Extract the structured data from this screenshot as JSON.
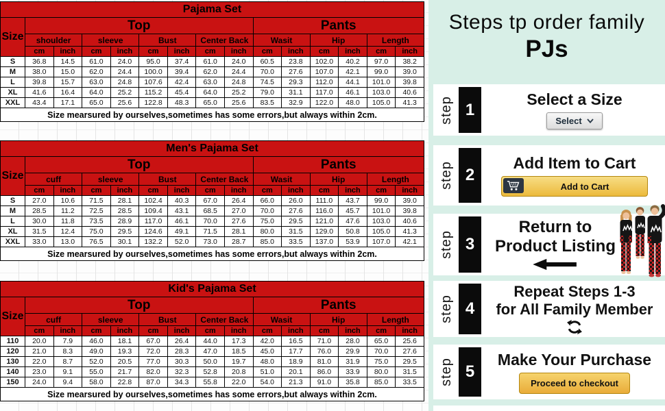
{
  "colors": {
    "table_red": "#c91212",
    "mint_background": "#d8efe7",
    "step_box_black": "#0b0b0b",
    "gold_button": "#ecba3c"
  },
  "left": {
    "tables": [
      {
        "title": "Pajama Set",
        "size_label": "Size",
        "top_label": "Top",
        "pants_label": "Pants",
        "unit_cm": "cm",
        "unit_inch": "inch",
        "groups": [
          "shoulder",
          "sleeve",
          "Bust",
          "Center Back",
          "Wasit",
          "Hip",
          "Length"
        ],
        "rows": [
          {
            "size": "S",
            "values": [
              "36.8",
              "14.5",
              "61.0",
              "24.0",
              "95.0",
              "37.4",
              "61.0",
              "24.0",
              "60.5",
              "23.8",
              "102.0",
              "40.2",
              "97.0",
              "38.2"
            ]
          },
          {
            "size": "M",
            "values": [
              "38.0",
              "15.0",
              "62.0",
              "24.4",
              "100.0",
              "39.4",
              "62.0",
              "24.4",
              "70.0",
              "27.6",
              "107.0",
              "42.1",
              "99.0",
              "39.0"
            ]
          },
          {
            "size": "L",
            "values": [
              "39.8",
              "15.7",
              "63.0",
              "24.8",
              "107.6",
              "42.4",
              "63.0",
              "24.8",
              "74.5",
              "29.3",
              "112.0",
              "44.1",
              "101.0",
              "39.8"
            ]
          },
          {
            "size": "XL",
            "values": [
              "41.6",
              "16.4",
              "64.0",
              "25.2",
              "115.2",
              "45.4",
              "64.0",
              "25.2",
              "79.0",
              "31.1",
              "117.0",
              "46.1",
              "103.0",
              "40.6"
            ]
          },
          {
            "size": "XXL",
            "values": [
              "43.4",
              "17.1",
              "65.0",
              "25.6",
              "122.8",
              "48.3",
              "65.0",
              "25.6",
              "83.5",
              "32.9",
              "122.0",
              "48.0",
              "105.0",
              "41.3"
            ]
          }
        ],
        "footer": "Size mearsured by ourselves,sometimes has some errors,but always within 2cm."
      },
      {
        "title": "Men's Pajama Set",
        "size_label": "Size",
        "top_label": "Top",
        "pants_label": "Pants",
        "unit_cm": "cm",
        "unit_inch": "inch",
        "groups": [
          "cuff",
          "sleeve",
          "Bust",
          "Center Back",
          "Wasit",
          "Hip",
          "Length"
        ],
        "rows": [
          {
            "size": "S",
            "values": [
              "27.0",
              "10.6",
              "71.5",
              "28.1",
              "102.4",
              "40.3",
              "67.0",
              "26.4",
              "66.0",
              "26.0",
              "111.0",
              "43.7",
              "99.0",
              "39.0"
            ]
          },
          {
            "size": "M",
            "values": [
              "28.5",
              "11.2",
              "72.5",
              "28.5",
              "109.4",
              "43.1",
              "68.5",
              "27.0",
              "70.0",
              "27.6",
              "116.0",
              "45.7",
              "101.0",
              "39.8"
            ]
          },
          {
            "size": "L",
            "values": [
              "30.0",
              "11.8",
              "73.5",
              "28.9",
              "117.0",
              "46.1",
              "70.0",
              "27.6",
              "75.0",
              "29.5",
              "121.0",
              "47.6",
              "103.0",
              "40.6"
            ]
          },
          {
            "size": "XL",
            "values": [
              "31.5",
              "12.4",
              "75.0",
              "29.5",
              "124.6",
              "49.1",
              "71.5",
              "28.1",
              "80.0",
              "31.5",
              "129.0",
              "50.8",
              "105.0",
              "41.3"
            ]
          },
          {
            "size": "XXL",
            "values": [
              "33.0",
              "13.0",
              "76.5",
              "30.1",
              "132.2",
              "52.0",
              "73.0",
              "28.7",
              "85.0",
              "33.5",
              "137.0",
              "53.9",
              "107.0",
              "42.1"
            ]
          }
        ],
        "footer": "Size mearsured by ourselves,sometimes has some errors,but always within 2cm."
      },
      {
        "title": "Kid's Pajama Set",
        "size_label": "Size",
        "top_label": "Top",
        "pants_label": "Pants",
        "unit_cm": "cm",
        "unit_inch": "inch",
        "groups": [
          "cuff",
          "sleeve",
          "Bust",
          "Center Back",
          "Wasit",
          "Hip",
          "Length"
        ],
        "rows": [
          {
            "size": "110",
            "values": [
              "20.0",
              "7.9",
              "46.0",
              "18.1",
              "67.0",
              "26.4",
              "44.0",
              "17.3",
              "42.0",
              "16.5",
              "71.0",
              "28.0",
              "65.0",
              "25.6"
            ]
          },
          {
            "size": "120",
            "values": [
              "21.0",
              "8.3",
              "49.0",
              "19.3",
              "72.0",
              "28.3",
              "47.0",
              "18.5",
              "45.0",
              "17.7",
              "76.0",
              "29.9",
              "70.0",
              "27.6"
            ]
          },
          {
            "size": "130",
            "values": [
              "22.0",
              "8.7",
              "52.0",
              "20.5",
              "77.0",
              "30.3",
              "50.0",
              "19.7",
              "48.0",
              "18.9",
              "81.0",
              "31.9",
              "75.0",
              "29.5"
            ]
          },
          {
            "size": "140",
            "values": [
              "23.0",
              "9.1",
              "55.0",
              "21.7",
              "82.0",
              "32.3",
              "52.8",
              "20.8",
              "51.0",
              "20.1",
              "86.0",
              "33.9",
              "80.0",
              "31.5"
            ]
          },
          {
            "size": "150",
            "values": [
              "24.0",
              "9.4",
              "58.0",
              "22.8",
              "87.0",
              "34.3",
              "55.8",
              "22.0",
              "54.0",
              "21.3",
              "91.0",
              "35.8",
              "85.0",
              "33.5"
            ]
          }
        ],
        "footer": "Size mearsured by ourselves,sometimes has some errors,but always within 2cm."
      }
    ]
  },
  "right": {
    "title_line1": "Steps tp order family",
    "title_line2": "PJs",
    "step_word": "step",
    "steps": [
      {
        "number": "1",
        "heading": "Select a Size",
        "select_label": "Select"
      },
      {
        "number": "2",
        "heading": "Add Item to Cart",
        "button_label": "Add to Cart"
      },
      {
        "number": "3",
        "heading_line1": "Return to",
        "heading_line2": "Product Listing"
      },
      {
        "number": "4",
        "heading_line1": "Repeat Steps 1-3",
        "heading_line2": "for All Family Member"
      },
      {
        "number": "5",
        "heading": "Make Your Purchase",
        "button_label": "Proceed to checkout"
      }
    ]
  }
}
